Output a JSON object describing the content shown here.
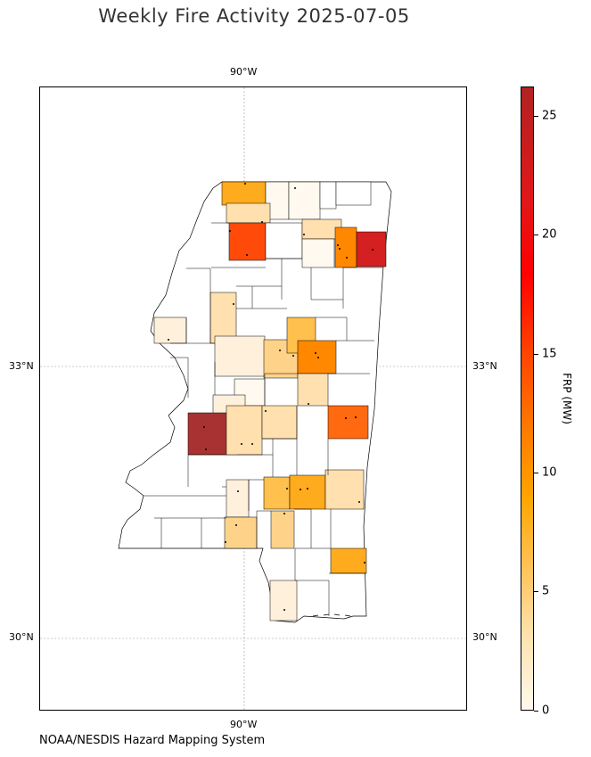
{
  "title": "Weekly Fire Activity 2025-07-05",
  "source": "NOAA/NESDIS Hazard Mapping System",
  "graticule": {
    "lon_label": "90°W",
    "lat_labels": [
      "33°N",
      "30°N"
    ]
  },
  "colorbar": {
    "label": "FRP (MW)",
    "range": [
      0,
      26.2
    ],
    "ticks": [
      "0",
      "5",
      "10",
      "15",
      "20",
      "25"
    ],
    "colors": [
      "#fff9ec",
      "#ffe2ad",
      "#ffc55e",
      "#ffa500",
      "#ff7a00",
      "#ff4500",
      "#ff0000",
      "#b22222"
    ]
  },
  "map": {
    "region": "Mississippi counties",
    "colors": {
      "none": "#ffffff",
      "c0": "#fff9ef",
      "c1": "#fff0dc",
      "c2": "#ffe0ae",
      "c3": "#ffd28a",
      "c4": "#ffc04e",
      "c5": "#ffab1e",
      "c6": "#ff8800",
      "c7": "#ff6910",
      "c8": "#ff4a0a",
      "c9": "#d42020",
      "c10": "#a83232"
    }
  }
}
